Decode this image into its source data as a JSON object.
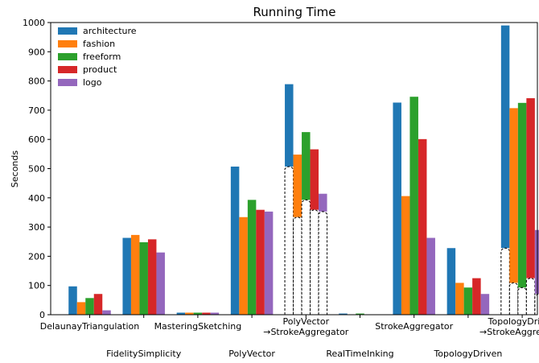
{
  "chart_data": {
    "type": "bar",
    "title": "Running Time",
    "ylabel": "Seconds",
    "xlabel": "",
    "ylim": [
      0,
      1000
    ],
    "yticks": [
      0,
      100,
      200,
      300,
      400,
      500,
      600,
      700,
      800,
      900,
      1000
    ],
    "grid": false,
    "legend_placement": "top-left",
    "categories": [
      "DelaunayTriangulation",
      "FidelitySimplicity",
      "MasteringSketching",
      "PolyVector",
      "PolyVector\n→StrokeAggregator",
      "RealTimeInking",
      "StrokeAggregator",
      "TopologyDriven",
      "TopologyDriven\n→StrokeAggregator"
    ],
    "series": [
      {
        "name": "architecture",
        "color": "#1f77b4",
        "values": [
          97,
          263,
          7,
          507,
          789,
          4,
          726,
          228,
          990
        ]
      },
      {
        "name": "fashion",
        "color": "#ff7f0e",
        "values": [
          43,
          273,
          7,
          334,
          548,
          0,
          406,
          109,
          707
        ]
      },
      {
        "name": "freeform",
        "color": "#2ca02c",
        "values": [
          57,
          248,
          7,
          393,
          625,
          4,
          746,
          93,
          725
        ]
      },
      {
        "name": "product",
        "color": "#d62728",
        "values": [
          71,
          258,
          7,
          359,
          566,
          0,
          601,
          125,
          741
        ]
      },
      {
        "name": "logo",
        "color": "#9467bd",
        "values": [
          15,
          213,
          7,
          353,
          414,
          0,
          263,
          71,
          290
        ]
      }
    ],
    "stacked_base": {
      "description": "",
      "base_category": "PolyVector",
      "base_category_2": "TopologyDriven"
    }
  }
}
